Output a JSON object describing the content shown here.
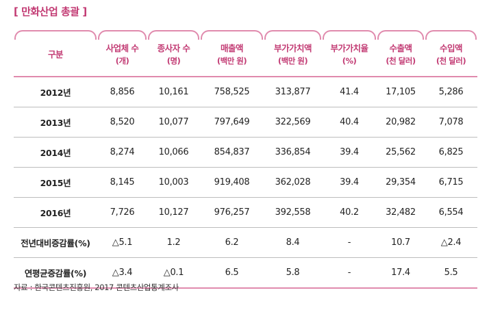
{
  "title": "[ 만화산업 총괄 ]",
  "headers": [
    {
      "main": "구분",
      "sub": ""
    },
    {
      "main": "사업체 수",
      "sub": "(개)"
    },
    {
      "main": "종사자 수",
      "sub": "(명)"
    },
    {
      "main": "매출액",
      "sub": "(백만 원)"
    },
    {
      "main": "부가가치액",
      "sub": "(백만 원)"
    },
    {
      "main": "부가가치율",
      "sub": "(%)"
    },
    {
      "main": "수출액",
      "sub": "(천 달러)"
    },
    {
      "main": "수입액",
      "sub": "(천 달러)"
    }
  ],
  "rows": [
    [
      "2012년",
      "8,856",
      "10,161",
      "758,525",
      "313,877",
      "41.4",
      "17,105",
      "5,286"
    ],
    [
      "2013년",
      "8,520",
      "10,077",
      "797,649",
      "322,569",
      "40.4",
      "20,982",
      "7,078"
    ],
    [
      "2014년",
      "8,274",
      "10,066",
      "854,837",
      "336,854",
      "39.4",
      "25,562",
      "6,825"
    ],
    [
      "2015년",
      "8,145",
      "10,003",
      "919,408",
      "362,028",
      "39.4",
      "29,354",
      "6,715"
    ],
    [
      "2016년",
      "7,726",
      "10,127",
      "976,257",
      "392,558",
      "40.2",
      "32,482",
      "6,554"
    ],
    [
      "전년대비증감률(%)",
      "△5.1",
      "1.2",
      "6.2",
      "8.4",
      "-",
      "10.7",
      "△2.4"
    ],
    [
      "연평균증감률(%)",
      "△3.4",
      "△0.1",
      "6.5",
      "5.8",
      "-",
      "17.4",
      "5.5"
    ]
  ],
  "source": "자료 : 한국콘텐츠진흥원, 2017 콘텐츠산업통계조사",
  "colors": {
    "accent": "#c23a73",
    "line": "#e08aad"
  }
}
